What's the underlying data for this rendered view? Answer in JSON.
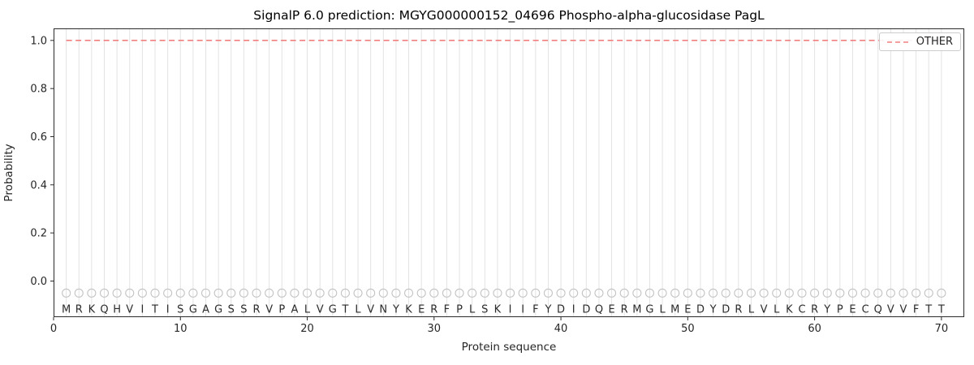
{
  "chart_data": {
    "type": "line",
    "title": "SignalP 6.0 prediction: MGYG000000152_04696 Phospho-alpha-glucosidase PagL",
    "xlabel": "Protein sequence",
    "ylabel": "Probability",
    "xlim": [
      0,
      71.8
    ],
    "ylim": [
      -0.15,
      1.05
    ],
    "x_ticks": [
      0,
      10,
      20,
      30,
      40,
      50,
      60,
      70
    ],
    "y_ticks": [
      "0.0",
      "0.2",
      "0.4",
      "0.6",
      "0.8",
      "1.0"
    ],
    "grid": "vertical-gridline-per-residue",
    "sequence": "MRKQHVITISGAGSSRVPALVGTLVNYKERFPLSKIIFYDIDQERMGLMEDYDRLVLKCRYPECQVVFTT",
    "series": [
      {
        "name": "OTHER",
        "style": "dashed",
        "color": "#f08080",
        "x_start": 1,
        "x_end": 70,
        "y_constant": 1.0
      }
    ],
    "markers": {
      "shape": "open-circle",
      "color": "#c4c4c4",
      "y": -0.05
    },
    "letters_y": -0.105,
    "legend": {
      "position": "upper right",
      "entries": [
        {
          "label": "OTHER",
          "color": "#f08080",
          "style": "dashed"
        }
      ]
    },
    "colors": {
      "gridline": "#e3e3e3",
      "spine": "#2b2b2b",
      "tick_text": "#262626",
      "letter_text": "#2b2b2b"
    }
  }
}
